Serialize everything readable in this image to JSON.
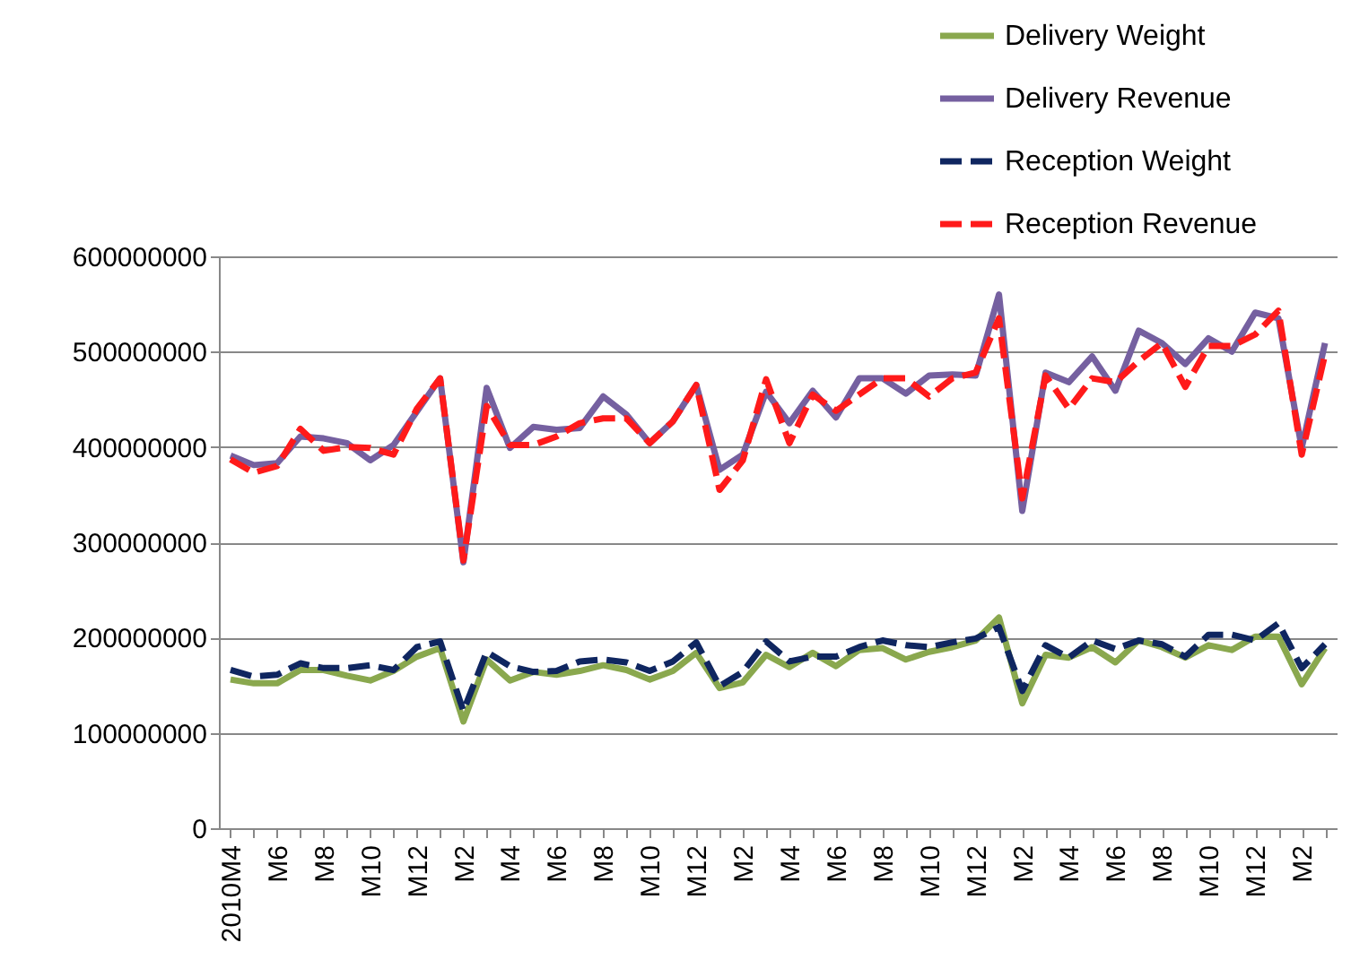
{
  "chart_data": {
    "type": "line",
    "categories": [
      "2010M4",
      null,
      "M6",
      null,
      "M8",
      null,
      "M10",
      null,
      "M12",
      null,
      "M2",
      null,
      "M4",
      null,
      "M6",
      null,
      "M8",
      null,
      "M10",
      null,
      "M12",
      null,
      "M2",
      null,
      "M4",
      null,
      "M6",
      null,
      "M8",
      null,
      "M10",
      null,
      "M12",
      null,
      "M2",
      null,
      "M4",
      null,
      "M6",
      null,
      "M8",
      null,
      "M10",
      null,
      "M12",
      null,
      "M2",
      null
    ],
    "series": [
      {
        "name": "Delivery Weight",
        "color": "#8aa84e",
        "line_style": "solid",
        "values": [
          156000000,
          152000000,
          152000000,
          166000000,
          166000000,
          160000000,
          155000000,
          165000000,
          180000000,
          189000000,
          112000000,
          177000000,
          155000000,
          164000000,
          161000000,
          165000000,
          171000000,
          166000000,
          156000000,
          165000000,
          184000000,
          147000000,
          153000000,
          182000000,
          169000000,
          184000000,
          170000000,
          187000000,
          189000000,
          177000000,
          185000000,
          190000000,
          197000000,
          221000000,
          131000000,
          182000000,
          179000000,
          190000000,
          174000000,
          197000000,
          190000000,
          179000000,
          192000000,
          187000000,
          201000000,
          201000000,
          151000000,
          189000000
        ]
      },
      {
        "name": "Delivery Revenue",
        "color": "#7560a0",
        "line_style": "solid",
        "values": [
          391000000,
          381000000,
          383000000,
          411000000,
          409000000,
          404000000,
          386000000,
          402000000,
          437000000,
          472000000,
          279000000,
          462000000,
          399000000,
          421000000,
          418000000,
          420000000,
          453000000,
          434000000,
          404000000,
          427000000,
          465000000,
          376000000,
          392000000,
          458000000,
          425000000,
          459000000,
          431000000,
          472000000,
          472000000,
          456000000,
          475000000,
          476000000,
          475000000,
          560000000,
          333000000,
          478000000,
          468000000,
          495000000,
          459000000,
          522000000,
          509000000,
          487000000,
          514000000,
          500000000,
          541000000,
          535000000,
          399000000,
          509000000
        ]
      },
      {
        "name": "Reception Weight",
        "color": "#0f2660",
        "line_style": "dashed",
        "values": [
          166000000,
          159000000,
          161000000,
          173000000,
          168000000,
          168000000,
          171000000,
          166000000,
          190000000,
          196000000,
          123000000,
          185000000,
          170000000,
          164000000,
          165000000,
          175000000,
          177000000,
          174000000,
          165000000,
          175000000,
          195000000,
          149000000,
          164000000,
          196000000,
          175000000,
          180000000,
          180000000,
          190000000,
          197000000,
          192000000,
          190000000,
          195000000,
          199000000,
          211000000,
          144000000,
          192000000,
          179000000,
          197000000,
          188000000,
          197000000,
          193000000,
          180000000,
          203000000,
          203000000,
          197000000,
          215000000,
          168000000,
          193000000
        ]
      },
      {
        "name": "Reception Revenue",
        "color": "#ff1a1a",
        "line_style": "dashed",
        "values": [
          387000000,
          373000000,
          380000000,
          419000000,
          396000000,
          400000000,
          399000000,
          392000000,
          440000000,
          472000000,
          281000000,
          443000000,
          402000000,
          402000000,
          411000000,
          425000000,
          430000000,
          430000000,
          404000000,
          427000000,
          465000000,
          355000000,
          386000000,
          471000000,
          404000000,
          455000000,
          438000000,
          455000000,
          472000000,
          472000000,
          453000000,
          472000000,
          478000000,
          535000000,
          346000000,
          475000000,
          440000000,
          472000000,
          468000000,
          490000000,
          509000000,
          463000000,
          506000000,
          506000000,
          518000000,
          543000000,
          392000000,
          497000000
        ]
      }
    ],
    "ylim": [
      0,
      600000000
    ],
    "yticks": [
      0,
      100000000,
      200000000,
      300000000,
      400000000,
      500000000,
      600000000
    ],
    "grid": "y",
    "legend": "top right"
  }
}
